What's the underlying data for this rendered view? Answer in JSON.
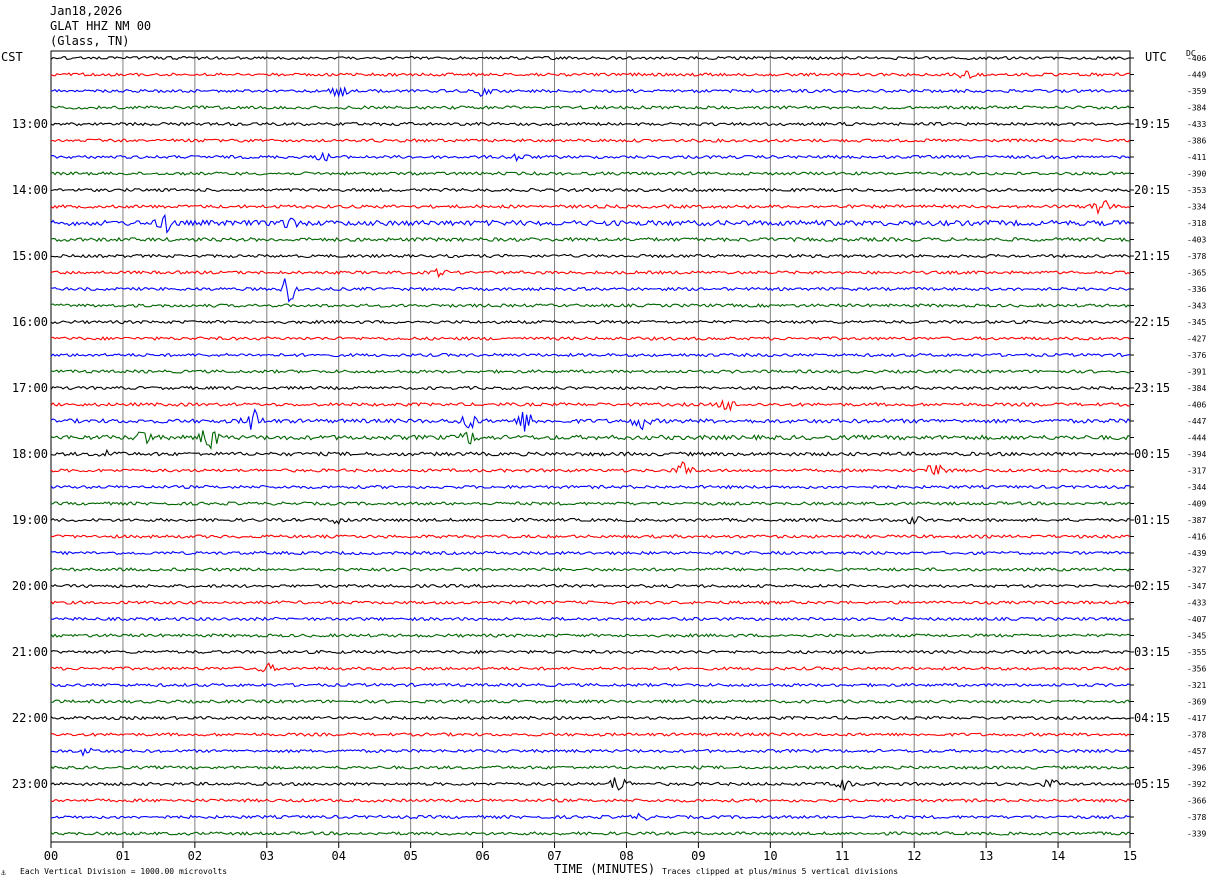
{
  "header": {
    "date": "Jan18,2026",
    "station": "GLAT HHZ NM 00",
    "location": "(Glass, TN)"
  },
  "left_axis_title": "CST",
  "right_axis_title": "UTC",
  "dc_title": "DC",
  "footer": {
    "scale_note": "Each Vertical Division = 1000.00 microvolts",
    "xlabel": "TIME (MINUTES)",
    "clip_note": "Traces clipped at plus/minus 5 vertical divisions",
    "mark": "⚓"
  },
  "colors": {
    "cycle": [
      "#000000",
      "#ff0000",
      "#0000ff",
      "#006600"
    ],
    "grid": "#808080"
  },
  "chart_data": {
    "type": "line",
    "title": "",
    "xlabel": "TIME (MINUTES)",
    "xlim": [
      0,
      15
    ],
    "x_ticks": [
      "00",
      "01",
      "02",
      "03",
      "04",
      "05",
      "06",
      "07",
      "08",
      "09",
      "10",
      "11",
      "12",
      "13",
      "14",
      "15"
    ],
    "grid": true,
    "left_hour_labels": [
      {
        "row": 4,
        "label": "13:00"
      },
      {
        "row": 8,
        "label": "14:00"
      },
      {
        "row": 12,
        "label": "15:00"
      },
      {
        "row": 16,
        "label": "16:00"
      },
      {
        "row": 20,
        "label": "17:00"
      },
      {
        "row": 24,
        "label": "18:00"
      },
      {
        "row": 28,
        "label": "19:00"
      },
      {
        "row": 32,
        "label": "20:00"
      },
      {
        "row": 36,
        "label": "21:00"
      },
      {
        "row": 40,
        "label": "22:00"
      },
      {
        "row": 44,
        "label": "23:00"
      }
    ],
    "right_hour_labels": [
      {
        "row": 4,
        "label": "19:15"
      },
      {
        "row": 8,
        "label": "20:15"
      },
      {
        "row": 12,
        "label": "21:15"
      },
      {
        "row": 16,
        "label": "22:15"
      },
      {
        "row": 20,
        "label": "23:15"
      },
      {
        "row": 24,
        "label": "00:15"
      },
      {
        "row": 28,
        "label": "01:15"
      },
      {
        "row": 32,
        "label": "02:15"
      },
      {
        "row": 36,
        "label": "03:15"
      },
      {
        "row": 40,
        "label": "04:15"
      },
      {
        "row": 44,
        "label": "05:15"
      }
    ],
    "dc_offsets": [
      "-406",
      "-449",
      "-359",
      "-384",
      "-433",
      "-386",
      "-411",
      "-390",
      "-353",
      "-334",
      "-318",
      "-403",
      "-378",
      "-365",
      "-336",
      "-343",
      "-345",
      "-427",
      "-376",
      "-391",
      "-384",
      "-406",
      "-447",
      "-444",
      "-394",
      "-317",
      "-344",
      "-409",
      "-387",
      "-416",
      "-439",
      "-327",
      "-347",
      "-433",
      "-407",
      "-345",
      "-355",
      "-356",
      "-321",
      "-369",
      "-417",
      "-378",
      "-457",
      "-396",
      "-392",
      "-366",
      "-378",
      "-339"
    ],
    "base_amplitude": [
      1.5,
      1.5,
      1.5,
      1.5,
      1.5,
      1.5,
      1.5,
      1.5,
      1.5,
      1.6,
      2.6,
      1.8,
      1.5,
      1.5,
      1.5,
      1.5,
      1.5,
      1.5,
      1.5,
      1.5,
      1.5,
      1.6,
      2.0,
      2.2,
      1.8,
      1.5,
      1.5,
      1.5,
      1.5,
      1.5,
      1.5,
      1.5,
      1.5,
      1.5,
      1.5,
      1.5,
      1.5,
      1.5,
      1.5,
      1.5,
      1.5,
      1.5,
      1.5,
      1.5,
      1.5,
      1.5,
      1.5,
      1.5
    ],
    "events": [
      {
        "row": 1,
        "minute": 12.7,
        "amplitude": 4
      },
      {
        "row": 2,
        "minute": 4.0,
        "amplitude": 6
      },
      {
        "row": 2,
        "minute": 6.0,
        "amplitude": 4
      },
      {
        "row": 6,
        "minute": 3.8,
        "amplitude": 3
      },
      {
        "row": 6,
        "minute": 6.5,
        "amplitude": 4
      },
      {
        "row": 9,
        "minute": 14.6,
        "amplitude": 12
      },
      {
        "row": 10,
        "minute": 1.6,
        "amplitude": 8
      },
      {
        "row": 10,
        "minute": 3.3,
        "amplitude": 5
      },
      {
        "row": 13,
        "minute": 5.4,
        "amplitude": 3
      },
      {
        "row": 14,
        "minute": 3.3,
        "amplitude": 14
      },
      {
        "row": 21,
        "minute": 9.4,
        "amplitude": 6
      },
      {
        "row": 22,
        "minute": 2.8,
        "amplitude": 12
      },
      {
        "row": 22,
        "minute": 5.8,
        "amplitude": 8
      },
      {
        "row": 22,
        "minute": 6.6,
        "amplitude": 10
      },
      {
        "row": 22,
        "minute": 8.2,
        "amplitude": 8
      },
      {
        "row": 23,
        "minute": 1.3,
        "amplitude": 8
      },
      {
        "row": 23,
        "minute": 2.2,
        "amplitude": 14
      },
      {
        "row": 23,
        "minute": 5.8,
        "amplitude": 6
      },
      {
        "row": 24,
        "minute": 0.8,
        "amplitude": 4
      },
      {
        "row": 25,
        "minute": 8.8,
        "amplitude": 8
      },
      {
        "row": 25,
        "minute": 12.3,
        "amplitude": 10
      },
      {
        "row": 28,
        "minute": 4.0,
        "amplitude": 4
      },
      {
        "row": 28,
        "minute": 12.0,
        "amplitude": 4
      },
      {
        "row": 37,
        "minute": 3.0,
        "amplitude": 4
      },
      {
        "row": 42,
        "minute": 0.5,
        "amplitude": 4
      },
      {
        "row": 44,
        "minute": 7.9,
        "amplitude": 10
      },
      {
        "row": 44,
        "minute": 11.0,
        "amplitude": 6
      },
      {
        "row": 44,
        "minute": 13.9,
        "amplitude": 4
      },
      {
        "row": 46,
        "minute": 8.2,
        "amplitude": 3
      }
    ]
  }
}
